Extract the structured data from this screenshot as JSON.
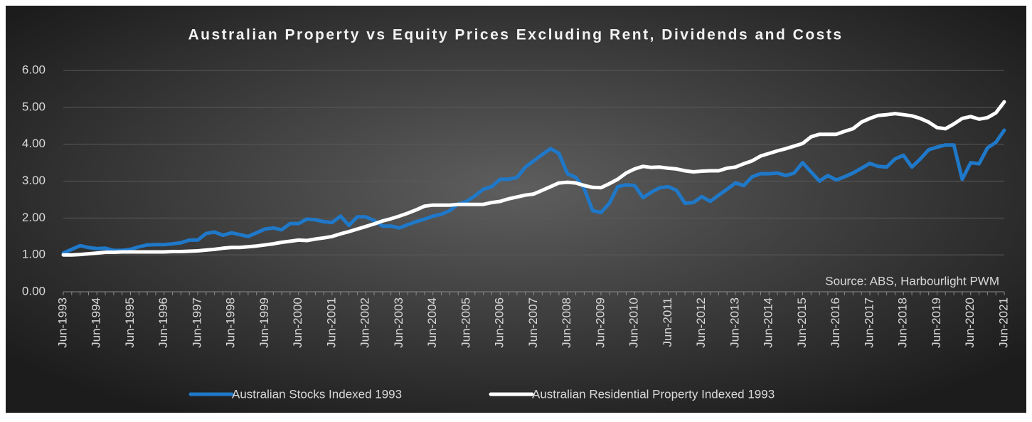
{
  "chart_data": {
    "type": "line",
    "title": "Australian Property vs Equity Prices Excluding Rent, Dividends and Costs",
    "annotation": "Source: ABS, Harbourlight PWM",
    "categories": [
      "Jun-1993",
      null,
      null,
      null,
      "Jun-1994",
      null,
      null,
      null,
      "Jun-1995",
      null,
      null,
      null,
      "Jun-1996",
      null,
      null,
      null,
      "Jun-1997",
      null,
      null,
      null,
      "Jun-1998",
      null,
      null,
      null,
      "Jun-1999",
      null,
      null,
      null,
      "Jun-2000",
      null,
      null,
      null,
      "Jun-2001",
      null,
      null,
      null,
      "Jun-2002",
      null,
      null,
      null,
      "Jun-2003",
      null,
      null,
      null,
      "Jun-2004",
      null,
      null,
      null,
      "Jun-2005",
      null,
      null,
      null,
      "Jun-2006",
      null,
      null,
      null,
      "Jun-2007",
      null,
      null,
      null,
      "Jun-2008",
      null,
      null,
      null,
      "Jun-2009",
      null,
      null,
      null,
      "Jun-2010",
      null,
      null,
      null,
      "Jun-2011",
      null,
      null,
      null,
      "Jun-2012",
      null,
      null,
      null,
      "Jun-2013",
      null,
      null,
      null,
      "Jun-2014",
      null,
      null,
      null,
      "Jun-2015",
      null,
      null,
      null,
      "Jun-2016",
      null,
      null,
      null,
      "Jun-2017",
      null,
      null,
      null,
      "Jun-2018",
      null,
      null,
      null,
      "Jun-2019",
      null,
      null,
      null,
      "Jun-2020",
      null,
      null,
      null,
      "Jun-2021"
    ],
    "series": [
      {
        "name": "Australian Stocks Indexed 1993",
        "color": "#1f78c8",
        "values": [
          1.05,
          1.15,
          1.25,
          1.2,
          1.17,
          1.18,
          1.12,
          1.12,
          1.15,
          1.22,
          1.27,
          1.28,
          1.28,
          1.3,
          1.33,
          1.4,
          1.4,
          1.58,
          1.62,
          1.53,
          1.6,
          1.55,
          1.5,
          1.6,
          1.7,
          1.73,
          1.68,
          1.85,
          1.85,
          1.97,
          1.95,
          1.9,
          1.88,
          2.05,
          1.8,
          2.03,
          2.03,
          1.93,
          1.78,
          1.78,
          1.73,
          1.82,
          1.9,
          1.97,
          2.05,
          2.1,
          2.2,
          2.38,
          2.45,
          2.6,
          2.78,
          2.85,
          3.05,
          3.05,
          3.1,
          3.38,
          3.55,
          3.72,
          3.88,
          3.75,
          3.2,
          3.1,
          2.8,
          2.2,
          2.15,
          2.4,
          2.85,
          2.9,
          2.88,
          2.55,
          2.7,
          2.82,
          2.85,
          2.75,
          2.4,
          2.42,
          2.58,
          2.45,
          2.62,
          2.78,
          2.95,
          2.88,
          3.12,
          3.2,
          3.2,
          3.22,
          3.15,
          3.22,
          3.5,
          3.25,
          3.0,
          3.15,
          3.03,
          3.12,
          3.22,
          3.35,
          3.48,
          3.4,
          3.38,
          3.6,
          3.7,
          3.38,
          3.6,
          3.85,
          3.92,
          3.98,
          3.98,
          3.05,
          3.5,
          3.47,
          3.9,
          4.05,
          4.38
        ]
      },
      {
        "name": "Australian Residential Property Indexed 1993",
        "color": "#ffffff",
        "values": [
          1.0,
          1.0,
          1.01,
          1.03,
          1.05,
          1.07,
          1.07,
          1.08,
          1.08,
          1.08,
          1.08,
          1.08,
          1.08,
          1.09,
          1.09,
          1.1,
          1.11,
          1.13,
          1.15,
          1.18,
          1.2,
          1.2,
          1.22,
          1.24,
          1.27,
          1.3,
          1.34,
          1.37,
          1.4,
          1.39,
          1.43,
          1.46,
          1.5,
          1.57,
          1.63,
          1.7,
          1.77,
          1.84,
          1.92,
          1.98,
          2.05,
          2.13,
          2.22,
          2.32,
          2.35,
          2.35,
          2.35,
          2.37,
          2.37,
          2.37,
          2.37,
          2.42,
          2.45,
          2.52,
          2.57,
          2.62,
          2.65,
          2.75,
          2.85,
          2.95,
          2.97,
          2.95,
          2.88,
          2.83,
          2.82,
          2.93,
          3.05,
          3.22,
          3.33,
          3.4,
          3.37,
          3.38,
          3.35,
          3.33,
          3.28,
          3.25,
          3.27,
          3.28,
          3.28,
          3.35,
          3.38,
          3.47,
          3.55,
          3.68,
          3.75,
          3.82,
          3.88,
          3.95,
          4.02,
          4.2,
          4.27,
          4.27,
          4.27,
          4.35,
          4.42,
          4.6,
          4.7,
          4.78,
          4.8,
          4.83,
          4.8,
          4.77,
          4.7,
          4.6,
          4.45,
          4.42,
          4.55,
          4.7,
          4.75,
          4.68,
          4.72,
          4.85,
          5.15
        ]
      }
    ],
    "ylim": [
      0,
      6
    ],
    "yticks": [
      {
        "value": 0,
        "label": "0.00"
      },
      {
        "value": 1,
        "label": "1.00"
      },
      {
        "value": 2,
        "label": "2.00"
      },
      {
        "value": 3,
        "label": "3.00"
      },
      {
        "value": 4,
        "label": "4.00"
      },
      {
        "value": 5,
        "label": "5.00"
      },
      {
        "value": 6,
        "label": "6.00"
      }
    ],
    "grid": true,
    "legend": "bottom"
  }
}
